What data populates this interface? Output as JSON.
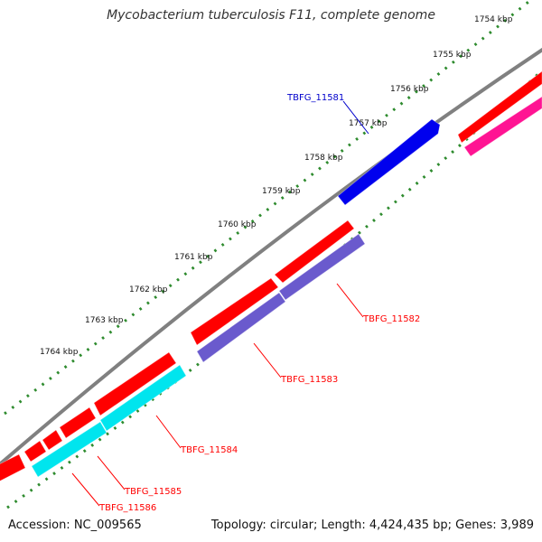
{
  "title": "Mycobacterium tuberculosis F11, complete genome",
  "footer": {
    "accession": "Accession: NC_009565",
    "topology": "Topology: circular; Length: 4,424,435 bp; Genes: 3,989"
  },
  "colors": {
    "backbone": "#808080",
    "ruler_dots": "#2e8b2e",
    "gene_red": "#ff0000",
    "gene_pink": "#ff1493",
    "gene_blue": "#0000ee",
    "gene_purple": "#6a5acd",
    "gene_cyan": "#00e5ee",
    "label_red": "#ff0000",
    "label_blue": "#0000cc"
  },
  "ruler_labels": [
    "1754 kbp",
    "1755 kbp",
    "1756 kbp",
    "1757 kbp",
    "1758 kbp",
    "1759 kbp",
    "1760 kbp",
    "1761 kbp",
    "1762 kbp",
    "1763 kbp",
    "1764 kbp"
  ],
  "gene_labels": [
    {
      "id": "TBFG_11581",
      "color": "label_blue"
    },
    {
      "id": "TBFG_11582",
      "color": "label_red"
    },
    {
      "id": "TBFG_11583",
      "color": "label_red"
    },
    {
      "id": "TBFG_11584",
      "color": "label_red"
    },
    {
      "id": "TBFG_11585",
      "color": "label_red"
    },
    {
      "id": "TBFG_11586",
      "color": "label_red"
    }
  ]
}
